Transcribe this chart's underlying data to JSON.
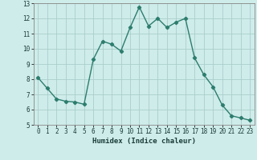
{
  "x": [
    0,
    1,
    2,
    3,
    4,
    5,
    6,
    7,
    8,
    9,
    10,
    11,
    12,
    13,
    14,
    15,
    16,
    17,
    18,
    19,
    20,
    21,
    22,
    23
  ],
  "y": [
    8.1,
    7.4,
    6.7,
    6.55,
    6.5,
    6.35,
    9.3,
    10.5,
    10.3,
    9.85,
    11.4,
    12.75,
    11.5,
    12.0,
    11.4,
    11.75,
    12.0,
    9.4,
    8.3,
    7.5,
    6.3,
    5.6,
    5.45,
    5.3
  ],
  "line_color": "#2d7d6e",
  "marker": "D",
  "marker_size": 2.2,
  "line_width": 1.0,
  "bg_color": "#ceecea",
  "grid_color": "#aacfcc",
  "xlabel": "Humidex (Indice chaleur)",
  "xlim": [
    -0.5,
    23.5
  ],
  "ylim": [
    5,
    13
  ],
  "yticks": [
    5,
    6,
    7,
    8,
    9,
    10,
    11,
    12,
    13
  ],
  "xticks": [
    0,
    1,
    2,
    3,
    4,
    5,
    6,
    7,
    8,
    9,
    10,
    11,
    12,
    13,
    14,
    15,
    16,
    17,
    18,
    19,
    20,
    21,
    22,
    23
  ],
  "tick_fontsize": 5.5,
  "xlabel_fontsize": 6.5
}
